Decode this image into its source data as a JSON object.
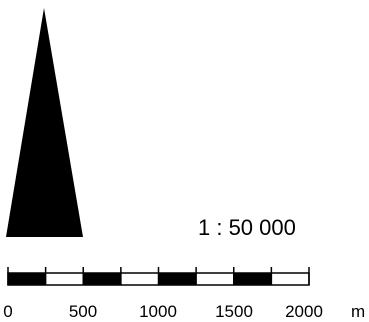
{
  "north_arrow": {
    "icon": "north-arrow-icon",
    "color": "#000000"
  },
  "scale": {
    "ratio_label": "1 : 50 000",
    "unit": "m",
    "ticks": [
      "0",
      "500",
      "1000",
      "1500",
      "2000"
    ],
    "segment_colors": [
      "#000000",
      "#ffffff"
    ]
  }
}
